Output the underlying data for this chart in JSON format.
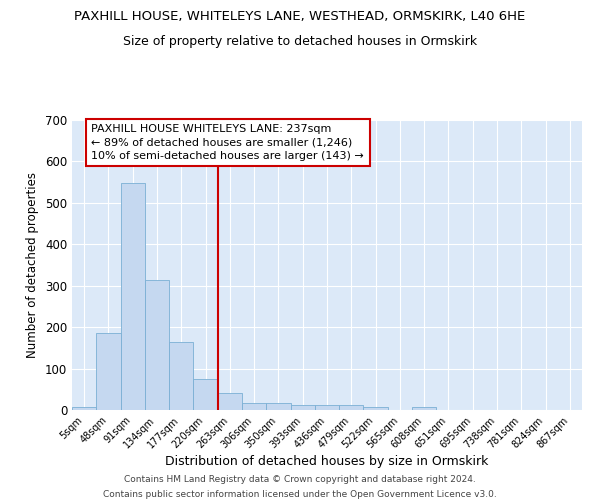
{
  "title": "PAXHILL HOUSE, WHITELEYS LANE, WESTHEAD, ORMSKIRK, L40 6HE",
  "subtitle": "Size of property relative to detached houses in Ormskirk",
  "xlabel": "Distribution of detached houses by size in Ormskirk",
  "ylabel": "Number of detached properties",
  "categories": [
    "5sqm",
    "48sqm",
    "91sqm",
    "134sqm",
    "177sqm",
    "220sqm",
    "263sqm",
    "306sqm",
    "350sqm",
    "393sqm",
    "436sqm",
    "479sqm",
    "522sqm",
    "565sqm",
    "608sqm",
    "651sqm",
    "695sqm",
    "738sqm",
    "781sqm",
    "824sqm",
    "867sqm"
  ],
  "values": [
    8,
    185,
    548,
    315,
    165,
    75,
    42,
    18,
    18,
    12,
    12,
    12,
    8,
    0,
    8,
    0,
    0,
    0,
    0,
    0,
    0
  ],
  "bar_color": "#c5d8f0",
  "bar_edge_color": "#7aafd4",
  "vline_color": "#cc0000",
  "vline_pos": 5.5,
  "annotation_text": "PAXHILL HOUSE WHITELEYS LANE: 237sqm\n← 89% of detached houses are smaller (1,246)\n10% of semi-detached houses are larger (143) →",
  "ylim": [
    0,
    700
  ],
  "background_color": "#dce9f8",
  "footer1": "Contains HM Land Registry data © Crown copyright and database right 2024.",
  "footer2": "Contains public sector information licensed under the Open Government Licence v3.0.",
  "title_fontsize": 9.5,
  "subtitle_fontsize": 9,
  "tick_fontsize": 7,
  "ylabel_fontsize": 8.5,
  "xlabel_fontsize": 9,
  "annotation_fontsize": 8,
  "footer_fontsize": 6.5
}
